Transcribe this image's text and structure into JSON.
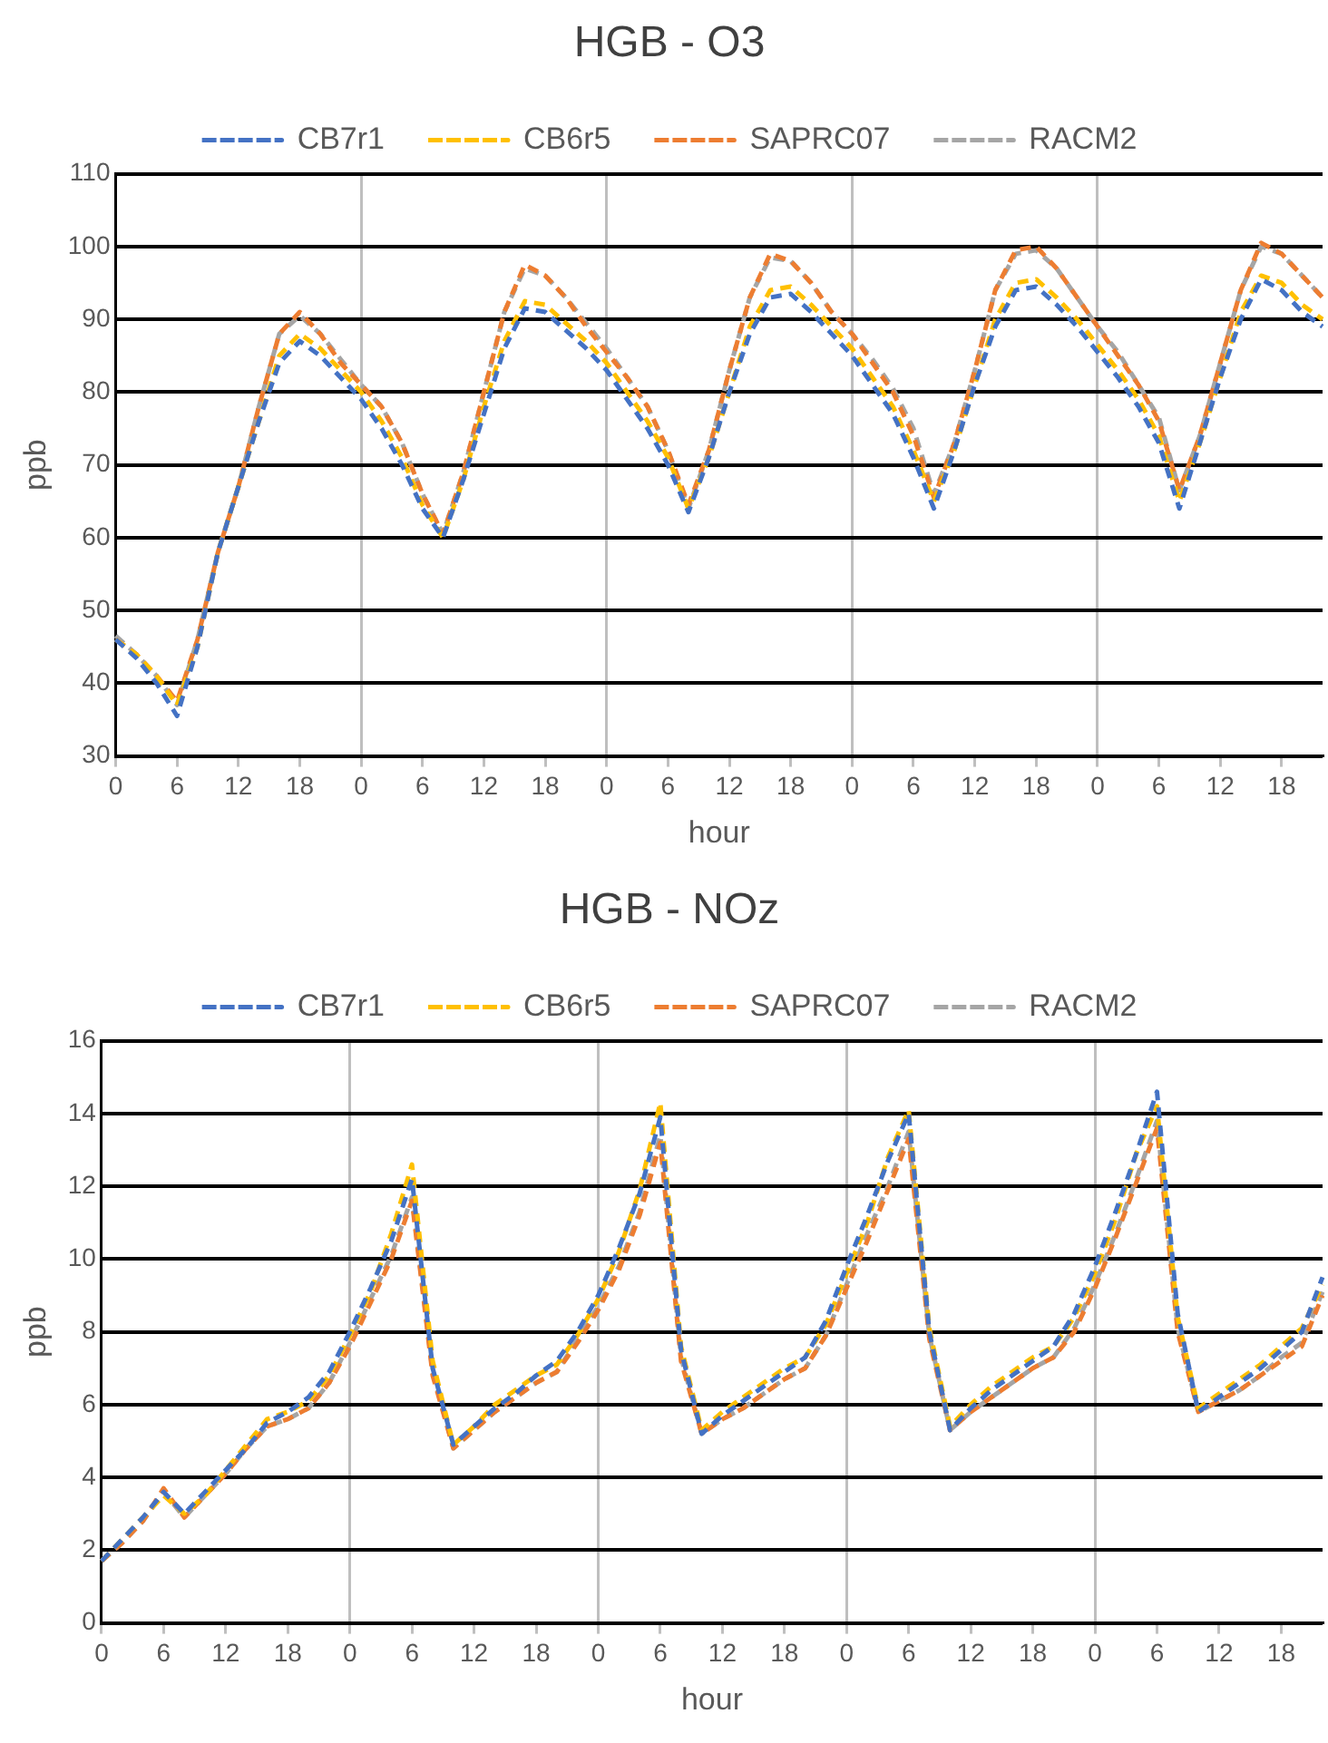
{
  "chart_data": [
    {
      "type": "line",
      "title": "HGB - O3",
      "xlabel": "hour",
      "ylabel": "ppb",
      "legend": "top",
      "grid": true,
      "line_style": "dashed",
      "marker": "none",
      "categories": [
        "0",
        null,
        null,
        "6",
        null,
        null,
        "12",
        null,
        null,
        "18",
        null,
        null,
        "0",
        null,
        null,
        "6",
        null,
        null,
        "12",
        null,
        null,
        "18",
        null,
        null,
        "0",
        null,
        null,
        "6",
        null,
        null,
        "12",
        null,
        null,
        "18",
        null,
        null,
        "0",
        null,
        null,
        "6",
        null,
        null,
        "12",
        null,
        null,
        "18",
        null,
        null,
        "0",
        null,
        null,
        "6",
        null,
        null,
        "12",
        null,
        null,
        "18",
        null,
        null
      ],
      "ylim": [
        30,
        110
      ],
      "yticks": [
        30,
        40,
        50,
        60,
        70,
        80,
        90,
        100,
        110
      ],
      "series": [
        {
          "name": "CB7r1",
          "color": "#4472c4",
          "values": [
            46,
            43.5,
            40,
            35.5,
            45,
            58,
            67,
            76,
            84,
            87,
            85,
            82,
            79,
            75,
            70,
            64,
            60,
            68,
            77,
            86,
            91.5,
            91,
            88.5,
            86,
            83,
            79,
            75,
            70,
            63.5,
            71,
            80,
            88,
            93,
            93.5,
            91,
            88,
            85,
            81,
            77,
            71,
            64,
            72,
            81,
            89,
            94,
            94.5,
            92,
            89,
            85.5,
            82,
            78,
            73,
            64,
            73,
            82,
            90,
            95.5,
            94,
            91,
            89
          ]
        },
        {
          "name": "CB6r5",
          "color": "#ffc000",
          "values": [
            46,
            44,
            41,
            37,
            45,
            58,
            67,
            76,
            85,
            88,
            86,
            83,
            80,
            76,
            71,
            64.5,
            60,
            68,
            78,
            87,
            92.5,
            92,
            89.5,
            87,
            84,
            80,
            76,
            71,
            64,
            71,
            80,
            89,
            94,
            94.5,
            92,
            89,
            86,
            82,
            78,
            72,
            65,
            72,
            81,
            90,
            95,
            95.5,
            93,
            90,
            86.5,
            83,
            79,
            74,
            65,
            73,
            82,
            91,
            96,
            95,
            92,
            90
          ]
        },
        {
          "name": "SAPRC07",
          "color": "#ed7d31",
          "values": [
            46,
            44,
            41,
            37.5,
            46,
            58,
            67,
            78,
            88,
            91,
            88,
            84,
            81,
            78,
            73,
            66,
            60.5,
            69,
            80,
            91,
            97.5,
            96,
            93,
            89,
            85.5,
            82,
            78,
            72,
            64.5,
            72,
            83,
            93,
            99,
            98,
            95,
            91,
            88,
            84,
            80,
            74,
            65.5,
            73,
            83,
            94,
            99.5,
            100,
            97,
            93,
            89,
            85,
            81,
            76,
            66.5,
            74,
            84,
            94,
            100.5,
            99,
            96,
            93
          ]
        },
        {
          "name": "RACM2",
          "color": "#a5a5a5",
          "values": [
            46.5,
            44,
            41,
            37,
            46,
            58,
            67,
            78,
            88,
            90.5,
            88,
            84.5,
            81,
            78,
            73,
            66,
            60.5,
            69,
            80,
            91,
            97,
            96,
            93,
            89.5,
            86,
            82,
            78,
            72,
            64,
            72,
            83,
            93,
            98.5,
            98,
            95,
            91,
            88,
            84.5,
            80.5,
            75,
            66,
            73,
            83,
            94,
            99,
            99.5,
            97,
            93,
            89,
            85.5,
            81,
            76.5,
            66.5,
            74,
            84,
            94,
            100,
            99,
            96,
            93
          ]
        }
      ]
    },
    {
      "type": "line",
      "title": "HGB - NOz",
      "xlabel": "hour",
      "ylabel": "ppb",
      "legend": "top",
      "grid": true,
      "line_style": "dashed",
      "marker": "none",
      "categories": [
        "0",
        null,
        null,
        "6",
        null,
        null,
        "12",
        null,
        null,
        "18",
        null,
        null,
        "0",
        null,
        null,
        "6",
        null,
        null,
        "12",
        null,
        null,
        "18",
        null,
        null,
        "0",
        null,
        null,
        "6",
        null,
        null,
        "12",
        null,
        null,
        "18",
        null,
        null,
        "0",
        null,
        null,
        "6",
        null,
        null,
        "12",
        null,
        null,
        "18",
        null,
        null,
        "0",
        null,
        null,
        "6",
        null,
        null,
        "12",
        null,
        null,
        "18",
        null,
        null
      ],
      "ylim": [
        0,
        16
      ],
      "yticks": [
        0,
        2,
        4,
        6,
        8,
        10,
        12,
        14,
        16
      ],
      "series": [
        {
          "name": "CB7r1",
          "color": "#4472c4",
          "values": [
            1.7,
            2.3,
            2.9,
            3.6,
            3.0,
            3.6,
            4.2,
            4.8,
            5.5,
            5.8,
            6.2,
            6.9,
            8.0,
            9.2,
            10.5,
            12.2,
            7.0,
            4.9,
            5.4,
            5.9,
            6.3,
            6.8,
            7.2,
            8.0,
            9.0,
            10.3,
            11.8,
            13.9,
            7.5,
            5.2,
            5.7,
            6.1,
            6.5,
            6.9,
            7.3,
            8.3,
            9.8,
            11.2,
            12.7,
            14.0,
            8.0,
            5.3,
            5.9,
            6.4,
            6.8,
            7.2,
            7.6,
            8.5,
            9.8,
            11.3,
            12.9,
            14.6,
            8.5,
            5.8,
            6.2,
            6.6,
            7.0,
            7.5,
            8.0,
            9.5
          ]
        },
        {
          "name": "CB6r5",
          "color": "#ffc000",
          "values": [
            1.7,
            2.3,
            2.9,
            3.5,
            3.0,
            3.5,
            4.2,
            4.9,
            5.6,
            5.8,
            6.1,
            6.8,
            7.9,
            9.1,
            10.7,
            12.6,
            7.2,
            4.9,
            5.4,
            6.0,
            6.4,
            6.8,
            7.1,
            7.9,
            8.9,
            10.2,
            11.9,
            14.3,
            7.6,
            5.3,
            5.8,
            6.2,
            6.6,
            7.0,
            7.3,
            8.2,
            9.6,
            11.0,
            12.8,
            14.1,
            8.1,
            5.4,
            6.0,
            6.5,
            6.9,
            7.3,
            7.6,
            8.4,
            9.6,
            11.1,
            12.9,
            14.2,
            8.4,
            5.9,
            6.3,
            6.7,
            7.1,
            7.6,
            8.1,
            9.3
          ]
        },
        {
          "name": "SAPRC07",
          "color": "#ed7d31",
          "values": [
            1.7,
            2.2,
            2.8,
            3.7,
            2.9,
            3.5,
            4.1,
            4.8,
            5.4,
            5.6,
            5.9,
            6.6,
            7.6,
            8.8,
            10.0,
            11.6,
            6.8,
            4.8,
            5.3,
            5.8,
            6.2,
            6.6,
            6.9,
            7.7,
            8.6,
            9.7,
            11.2,
            13.2,
            7.2,
            5.2,
            5.6,
            5.9,
            6.3,
            6.7,
            7.0,
            7.9,
            9.2,
            10.5,
            11.9,
            13.3,
            7.8,
            5.3,
            5.8,
            6.2,
            6.6,
            7.0,
            7.3,
            8.0,
            9.2,
            10.6,
            12.1,
            13.6,
            8.0,
            5.8,
            6.1,
            6.4,
            6.8,
            7.2,
            7.6,
            9.0
          ]
        },
        {
          "name": "RACM2",
          "color": "#a5a5a5",
          "values": [
            1.7,
            2.2,
            2.8,
            3.6,
            2.9,
            3.5,
            4.1,
            4.8,
            5.4,
            5.6,
            5.9,
            6.6,
            7.7,
            8.9,
            10.1,
            11.7,
            6.9,
            4.8,
            5.3,
            5.8,
            6.2,
            6.6,
            6.9,
            7.8,
            8.7,
            9.8,
            11.3,
            13.4,
            7.3,
            5.2,
            5.6,
            5.9,
            6.3,
            6.7,
            7.0,
            7.9,
            9.3,
            10.7,
            12.0,
            13.5,
            7.9,
            5.3,
            5.8,
            6.2,
            6.6,
            7.0,
            7.3,
            8.1,
            9.3,
            10.7,
            12.2,
            13.8,
            8.1,
            5.8,
            6.1,
            6.4,
            6.8,
            7.3,
            7.7,
            9.1
          ]
        }
      ]
    }
  ]
}
